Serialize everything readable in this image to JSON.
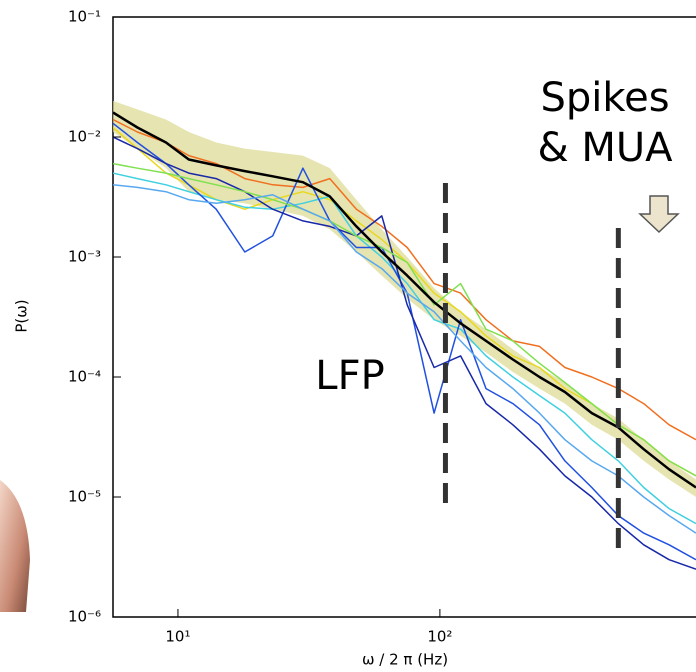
{
  "chart_data": {
    "type": "line",
    "xlabel": "ω / 2 π (Hz)",
    "ylabel": "P(ω)",
    "log_x": true,
    "log_y": true,
    "xlim": [
      5.65,
      950
    ],
    "ylim": [
      1e-06,
      0.1
    ],
    "xticks": [
      {
        "value": 10,
        "label": "10¹"
      },
      {
        "value": 100,
        "label": "10²"
      }
    ],
    "yticks": [
      {
        "value": 0.1,
        "label": "10⁻¹"
      },
      {
        "value": 0.01,
        "label": "10⁻²"
      },
      {
        "value": 0.001,
        "label": "10⁻³"
      },
      {
        "value": 0.0001,
        "label": "10⁻⁴"
      },
      {
        "value": 1e-05,
        "label": "10⁻⁵"
      },
      {
        "value": 1e-06,
        "label": "10⁻⁶"
      }
    ],
    "x": [
      5.65,
      7,
      9,
      11,
      14,
      18,
      23,
      30,
      38,
      48,
      60,
      75,
      95,
      120,
      150,
      190,
      240,
      300,
      380,
      480,
      600,
      750,
      950
    ],
    "band": {
      "color": "#dcd890",
      "upper": [
        0.02,
        0.017,
        0.014,
        0.011,
        0.009,
        0.008,
        0.0075,
        0.007,
        0.0055,
        0.003,
        0.0017,
        0.001,
        0.00055,
        0.00035,
        0.00025,
        0.00017,
        0.00012,
        9e-05,
        6e-05,
        4.5e-05,
        3e-05,
        2e-05,
        1.4e-05
      ],
      "lower": [
        0.011,
        0.008,
        0.0055,
        0.0035,
        0.003,
        0.0028,
        0.0025,
        0.0022,
        0.0017,
        0.0011,
        0.0007,
        0.00045,
        0.0003,
        0.00022,
        0.00016,
        0.00011,
        8e-05,
        6e-05,
        4e-05,
        3e-05,
        2e-05,
        1.4e-05,
        1e-05
      ]
    },
    "series": [
      {
        "color": "#f07020",
        "values": [
          0.014,
          0.011,
          0.009,
          0.007,
          0.006,
          0.0045,
          0.004,
          0.0038,
          0.0045,
          0.0025,
          0.0018,
          0.0012,
          0.0006,
          0.0005,
          0.0003,
          0.0002,
          0.00018,
          0.00012,
          0.0001,
          8e-05,
          6e-05,
          4e-05,
          3e-05
        ]
      },
      {
        "color": "#e8d820",
        "values": [
          0.012,
          0.008,
          0.005,
          0.004,
          0.003,
          0.0025,
          0.003,
          0.0035,
          0.003,
          0.002,
          0.0014,
          0.0009,
          0.0005,
          0.00035,
          0.00022,
          0.00015,
          0.00012,
          8e-05,
          6e-05,
          4e-05,
          3e-05,
          2e-05,
          1.5e-05
        ]
      },
      {
        "color": "#40d0e0",
        "values": [
          0.005,
          0.0045,
          0.004,
          0.0035,
          0.003,
          0.0026,
          0.0025,
          0.0028,
          0.0032,
          0.0015,
          0.001,
          0.0006,
          0.0003,
          0.00025,
          0.00015,
          0.0001,
          7e-05,
          5e-05,
          3e-05,
          2e-05,
          1.2e-05,
          8e-06,
          6e-06
        ]
      },
      {
        "color": "#2050e0",
        "values": [
          0.013,
          0.009,
          0.006,
          0.004,
          0.0025,
          0.0011,
          0.0015,
          0.0055,
          0.002,
          0.0012,
          0.0012,
          0.0005,
          5e-05,
          0.0003,
          8e-05,
          6e-05,
          4e-05,
          2e-05,
          1.2e-05,
          7e-06,
          5e-06,
          4e-06,
          3e-06
        ]
      },
      {
        "color": "#1828a8",
        "values": [
          0.01,
          0.008,
          0.006,
          0.005,
          0.0045,
          0.0035,
          0.0025,
          0.002,
          0.0018,
          0.0015,
          0.0022,
          0.0004,
          0.00012,
          0.00015,
          6e-05,
          4e-05,
          2.5e-05,
          1.5e-05,
          1e-05,
          6e-06,
          4e-06,
          3e-06,
          2.5e-06
        ]
      },
      {
        "color": "#80e050",
        "values": [
          0.006,
          0.0055,
          0.005,
          0.0045,
          0.004,
          0.0035,
          0.003,
          0.0025,
          0.002,
          0.0015,
          0.0012,
          0.0009,
          0.0004,
          0.0006,
          0.00025,
          0.0002,
          0.00013,
          9e-05,
          6e-05,
          4e-05,
          3e-05,
          2e-05,
          1.5e-05
        ]
      },
      {
        "color": "#58a8f0",
        "values": [
          0.004,
          0.0038,
          0.0035,
          0.003,
          0.0028,
          0.003,
          0.0033,
          0.0025,
          0.002,
          0.0011,
          0.0008,
          0.0005,
          0.00035,
          0.0002,
          0.00012,
          8e-05,
          5e-05,
          3e-05,
          2e-05,
          1.5e-05,
          1e-05,
          7e-06,
          5e-06
        ]
      }
    ],
    "mean": {
      "color": "#000000",
      "values": [
        0.016,
        0.012,
        0.009,
        0.0065,
        0.0058,
        0.0052,
        0.0047,
        0.0042,
        0.0032,
        0.0018,
        0.0011,
        0.0007,
        0.00042,
        0.00028,
        0.0002,
        0.00014,
        0.0001,
        7.5e-05,
        5e-05,
        3.8e-05,
        2.5e-05,
        1.7e-05,
        1.2e-05
      ]
    },
    "vlines": [
      105,
      480
    ],
    "annotations": [
      {
        "text": "Spikes"
      },
      {
        "text": "& MUA"
      },
      {
        "text": "LFP"
      }
    ]
  }
}
